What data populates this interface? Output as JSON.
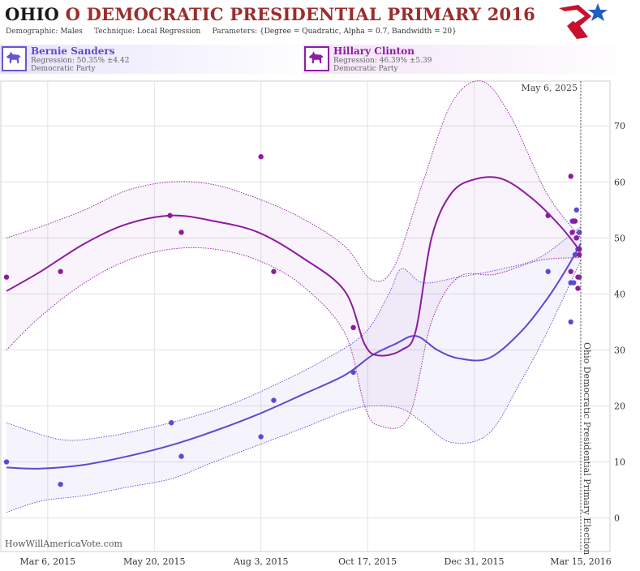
{
  "header": {
    "title_state": "OHIO",
    "title_rest": "O DEMOCRATIC PRESIDENTIAL PRIMARY 2016",
    "demographic_label": "Demographic:",
    "demographic_value": "Males",
    "technique_label": "Technique:",
    "technique_value": "Local Regression",
    "parameters_label": "Parameters:",
    "parameters_value": "{Degree = Quadratic, Alpha = 0.7, Bandwidth = 20}"
  },
  "candidates": [
    {
      "name": "Bernie Sanders",
      "regression": "Regression: 50.35% ±4.42",
      "party": "Democratic Party",
      "color": "#5b4bd0",
      "icon": "donkey-icon"
    },
    {
      "name": "Hillary Clinton",
      "regression": "Regression: 46.39% ±5.39",
      "party": "Democratic Party",
      "color": "#8e1aa0",
      "icon": "donkey-icon"
    }
  ],
  "chart_data": {
    "type": "scatter",
    "title": "OHIO O DEMOCRATIC PRESIDENTIAL PRIMARY 2016",
    "x_ticks": [
      "Mar 6, 2015",
      "May 20, 2015",
      "Aug 3, 2015",
      "Oct 17, 2015",
      "Dec 31, 2015",
      "Mar 15, 2016"
    ],
    "x_range": [
      "2015-02-01",
      "2016-03-23"
    ],
    "y_ticks": [
      0,
      10,
      20,
      30,
      40,
      50,
      60,
      70
    ],
    "ylim": [
      -6,
      78
    ],
    "grid": true,
    "current_date_label": "May 6, 2025",
    "election_line_date": "2016-03-15",
    "election_label": "Ohio Democratic Presidential Primary Election",
    "watermark": "HowWillAmericaVote.com",
    "series": [
      {
        "name": "Bernie Sanders",
        "color": "#5b4bd0",
        "points": [
          [
            "2015-02-05",
            10
          ],
          [
            "2015-03-15",
            6
          ],
          [
            "2015-06-01",
            17
          ],
          [
            "2015-06-08",
            11
          ],
          [
            "2015-08-03",
            14.5
          ],
          [
            "2015-08-12",
            21
          ],
          [
            "2015-10-07",
            26
          ],
          [
            "2016-02-21",
            44
          ],
          [
            "2016-03-08",
            35
          ],
          [
            "2016-03-08",
            42
          ],
          [
            "2016-03-09",
            53
          ],
          [
            "2016-03-10",
            42
          ],
          [
            "2016-03-11",
            47
          ],
          [
            "2016-03-12",
            50
          ],
          [
            "2016-03-12",
            55
          ],
          [
            "2016-03-13",
            48
          ],
          [
            "2016-03-14",
            51
          ],
          [
            "2016-03-14",
            43
          ]
        ],
        "trend": [
          [
            "2015-02-05",
            9
          ],
          [
            "2015-03-01",
            8.8
          ],
          [
            "2015-04-01",
            9.5
          ],
          [
            "2015-05-01",
            11
          ],
          [
            "2015-06-01",
            13
          ],
          [
            "2015-07-01",
            15.5
          ],
          [
            "2015-08-01",
            18.5
          ],
          [
            "2015-09-01",
            22
          ],
          [
            "2015-10-01",
            25.5
          ],
          [
            "2015-10-20",
            29
          ],
          [
            "2015-11-05",
            31
          ],
          [
            "2015-11-20",
            32.5
          ],
          [
            "2015-12-05",
            30
          ],
          [
            "2015-12-20",
            28.5
          ],
          [
            "2016-01-10",
            28.5
          ],
          [
            "2016-02-01",
            33
          ],
          [
            "2016-02-20",
            39
          ],
          [
            "2016-03-05",
            44.5
          ],
          [
            "2016-03-15",
            49
          ]
        ],
        "upper": [
          [
            "2015-02-05",
            17
          ],
          [
            "2015-03-15",
            14
          ],
          [
            "2015-04-15",
            14.5
          ],
          [
            "2015-05-15",
            16
          ],
          [
            "2015-06-15",
            18
          ],
          [
            "2015-07-15",
            20.5
          ],
          [
            "2015-08-15",
            24
          ],
          [
            "2015-09-15",
            28
          ],
          [
            "2015-10-15",
            33
          ],
          [
            "2015-11-01",
            40
          ],
          [
            "2015-11-10",
            44.5
          ],
          [
            "2015-11-25",
            42
          ],
          [
            "2015-12-20",
            43
          ],
          [
            "2016-01-20",
            44.5
          ],
          [
            "2016-02-15",
            46.5
          ],
          [
            "2016-03-15",
            52
          ]
        ],
        "lower": [
          [
            "2015-02-05",
            1
          ],
          [
            "2015-03-01",
            3
          ],
          [
            "2015-04-01",
            4
          ],
          [
            "2015-05-01",
            5.5
          ],
          [
            "2015-06-01",
            7
          ],
          [
            "2015-07-01",
            10
          ],
          [
            "2015-08-01",
            13
          ],
          [
            "2015-09-01",
            16
          ],
          [
            "2015-10-01",
            19
          ],
          [
            "2015-10-20",
            20
          ],
          [
            "2015-11-10",
            19.5
          ],
          [
            "2015-11-25",
            17
          ],
          [
            "2015-12-15",
            13.5
          ],
          [
            "2016-01-10",
            15
          ],
          [
            "2016-02-01",
            24
          ],
          [
            "2016-02-20",
            33
          ],
          [
            "2016-03-15",
            46
          ]
        ]
      },
      {
        "name": "Hillary Clinton",
        "color": "#8e1aa0",
        "points": [
          [
            "2015-02-05",
            43
          ],
          [
            "2015-03-15",
            44
          ],
          [
            "2015-05-31",
            54
          ],
          [
            "2015-06-08",
            51
          ],
          [
            "2015-08-03",
            64.5
          ],
          [
            "2015-08-12",
            44
          ],
          [
            "2015-10-07",
            34
          ],
          [
            "2016-02-21",
            54
          ],
          [
            "2016-03-08",
            61
          ],
          [
            "2016-03-08",
            44
          ],
          [
            "2016-03-09",
            51
          ],
          [
            "2016-03-10",
            53
          ],
          [
            "2016-03-11",
            53
          ],
          [
            "2016-03-12",
            50
          ],
          [
            "2016-03-13",
            43
          ],
          [
            "2016-03-13",
            41
          ],
          [
            "2016-03-14",
            48
          ],
          [
            "2016-03-14",
            47
          ]
        ],
        "trend": [
          [
            "2015-02-05",
            40.5
          ],
          [
            "2015-03-01",
            44
          ],
          [
            "2015-04-01",
            49
          ],
          [
            "2015-05-01",
            52.5
          ],
          [
            "2015-06-01",
            54
          ],
          [
            "2015-07-01",
            53
          ],
          [
            "2015-08-01",
            51
          ],
          [
            "2015-09-01",
            46.5
          ],
          [
            "2015-10-01",
            40.5
          ],
          [
            "2015-10-15",
            31
          ],
          [
            "2015-10-25",
            29
          ],
          [
            "2015-11-10",
            30
          ],
          [
            "2015-11-20",
            33.5
          ],
          [
            "2015-12-01",
            50
          ],
          [
            "2015-12-15",
            58
          ],
          [
            "2016-01-01",
            60.5
          ],
          [
            "2016-01-20",
            60.5
          ],
          [
            "2016-02-10",
            57
          ],
          [
            "2016-03-01",
            52
          ],
          [
            "2016-03-15",
            47.5
          ]
        ],
        "upper": [
          [
            "2015-02-05",
            50
          ],
          [
            "2015-03-01",
            52
          ],
          [
            "2015-04-01",
            55
          ],
          [
            "2015-05-01",
            58.5
          ],
          [
            "2015-06-01",
            60
          ],
          [
            "2015-07-01",
            59.5
          ],
          [
            "2015-08-01",
            57
          ],
          [
            "2015-09-01",
            53.5
          ],
          [
            "2015-10-01",
            48.5
          ],
          [
            "2015-10-20",
            42.5
          ],
          [
            "2015-11-05",
            45
          ],
          [
            "2015-11-25",
            60
          ],
          [
            "2015-12-15",
            74
          ],
          [
            "2016-01-05",
            78
          ],
          [
            "2016-01-25",
            72
          ],
          [
            "2016-02-20",
            58
          ],
          [
            "2016-03-15",
            50
          ]
        ],
        "lower": [
          [
            "2015-02-05",
            30
          ],
          [
            "2015-03-01",
            36
          ],
          [
            "2015-04-01",
            42
          ],
          [
            "2015-05-01",
            46
          ],
          [
            "2015-06-01",
            48
          ],
          [
            "2015-07-01",
            48
          ],
          [
            "2015-08-01",
            46
          ],
          [
            "2015-09-01",
            41.5
          ],
          [
            "2015-10-01",
            33
          ],
          [
            "2015-10-15",
            20
          ],
          [
            "2015-10-25",
            16.5
          ],
          [
            "2015-11-15",
            18
          ],
          [
            "2015-12-01",
            35
          ],
          [
            "2015-12-20",
            43
          ],
          [
            "2016-01-15",
            43.5
          ],
          [
            "2016-02-15",
            46
          ],
          [
            "2016-03-15",
            46.5
          ]
        ]
      }
    ]
  }
}
